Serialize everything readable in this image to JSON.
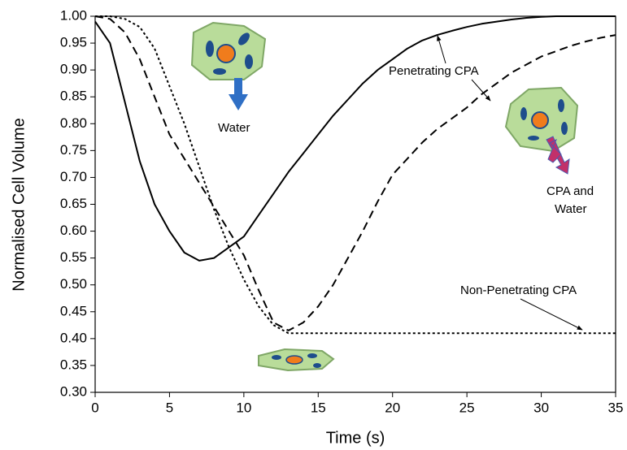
{
  "chart_data": {
    "type": "line",
    "x_label": "Time (s)",
    "y_label": "Normalised Cell Volume",
    "x": [
      0,
      1,
      2,
      3,
      4,
      5,
      6,
      7,
      8,
      9,
      10,
      11,
      12,
      13,
      14,
      15,
      16,
      17,
      18,
      19,
      20,
      21,
      22,
      23,
      24,
      25,
      26,
      27,
      28,
      29,
      30,
      31,
      32,
      33,
      34,
      35
    ],
    "series": [
      {
        "color": "#000000",
        "style": "solid",
        "values": [
          0.99,
          0.95,
          0.84,
          0.73,
          0.65,
          0.6,
          0.56,
          0.545,
          0.55,
          0.57,
          0.59,
          0.63,
          0.67,
          0.71,
          0.745,
          0.78,
          0.815,
          0.845,
          0.875,
          0.9,
          0.92,
          0.94,
          0.955,
          0.965,
          0.973,
          0.98,
          0.986,
          0.99,
          0.994,
          0.997,
          0.999,
          1.0,
          1.0,
          1.0,
          1.0,
          1.0
        ]
      },
      {
        "color": "#000000",
        "style": "dashed",
        "values": [
          1.0,
          0.995,
          0.97,
          0.92,
          0.85,
          0.78,
          0.735,
          0.69,
          0.645,
          0.6,
          0.555,
          0.49,
          0.43,
          0.415,
          0.43,
          0.46,
          0.5,
          0.55,
          0.6,
          0.655,
          0.705,
          0.735,
          0.765,
          0.79,
          0.81,
          0.83,
          0.855,
          0.875,
          0.895,
          0.91,
          0.925,
          0.935,
          0.945,
          0.953,
          0.96,
          0.965
        ]
      },
      {
        "color": "#000000",
        "style": "dotted",
        "values": [
          1.0,
          1.0,
          0.995,
          0.98,
          0.94,
          0.87,
          0.8,
          0.72,
          0.64,
          0.57,
          0.51,
          0.46,
          0.425,
          0.41,
          0.41,
          0.41,
          0.41,
          0.41,
          0.41,
          0.41,
          0.41,
          0.41,
          0.41,
          0.41,
          0.41,
          0.41,
          0.41,
          0.41,
          0.41,
          0.41,
          0.41,
          0.41,
          0.41,
          0.41,
          0.41,
          0.41
        ]
      }
    ],
    "xlim": [
      0,
      35
    ],
    "xticks": [
      0,
      5,
      10,
      15,
      20,
      25,
      30,
      35
    ],
    "ylim": [
      0.3,
      1.0
    ],
    "yticks": [
      {
        "value": 0.3,
        "label": "0.30"
      },
      {
        "value": 0.35,
        "label": "0.35"
      },
      {
        "value": 0.4,
        "label": "0.40"
      },
      {
        "value": 0.45,
        "label": "0.45"
      },
      {
        "value": 0.5,
        "label": "0.50"
      },
      {
        "value": 0.55,
        "label": "0.55"
      },
      {
        "value": 0.6,
        "label": "0.60"
      },
      {
        "value": 0.65,
        "label": "0.65"
      },
      {
        "value": 0.7,
        "label": "0.70"
      },
      {
        "value": 0.75,
        "label": "0.75"
      },
      {
        "value": 0.8,
        "label": "0.80"
      },
      {
        "value": 0.85,
        "label": "0.85"
      },
      {
        "value": 0.9,
        "label": "0.90"
      },
      {
        "value": 0.95,
        "label": "0.95"
      },
      {
        "value": 1.0,
        "label": "1.00"
      }
    ],
    "grid": false,
    "annotations": {
      "penetrating": "Penetrating CPA",
      "water": "Water",
      "cpa_water": [
        "CPA and",
        "Water"
      ],
      "non_penetrating": "Non-Penetrating CPA"
    }
  }
}
